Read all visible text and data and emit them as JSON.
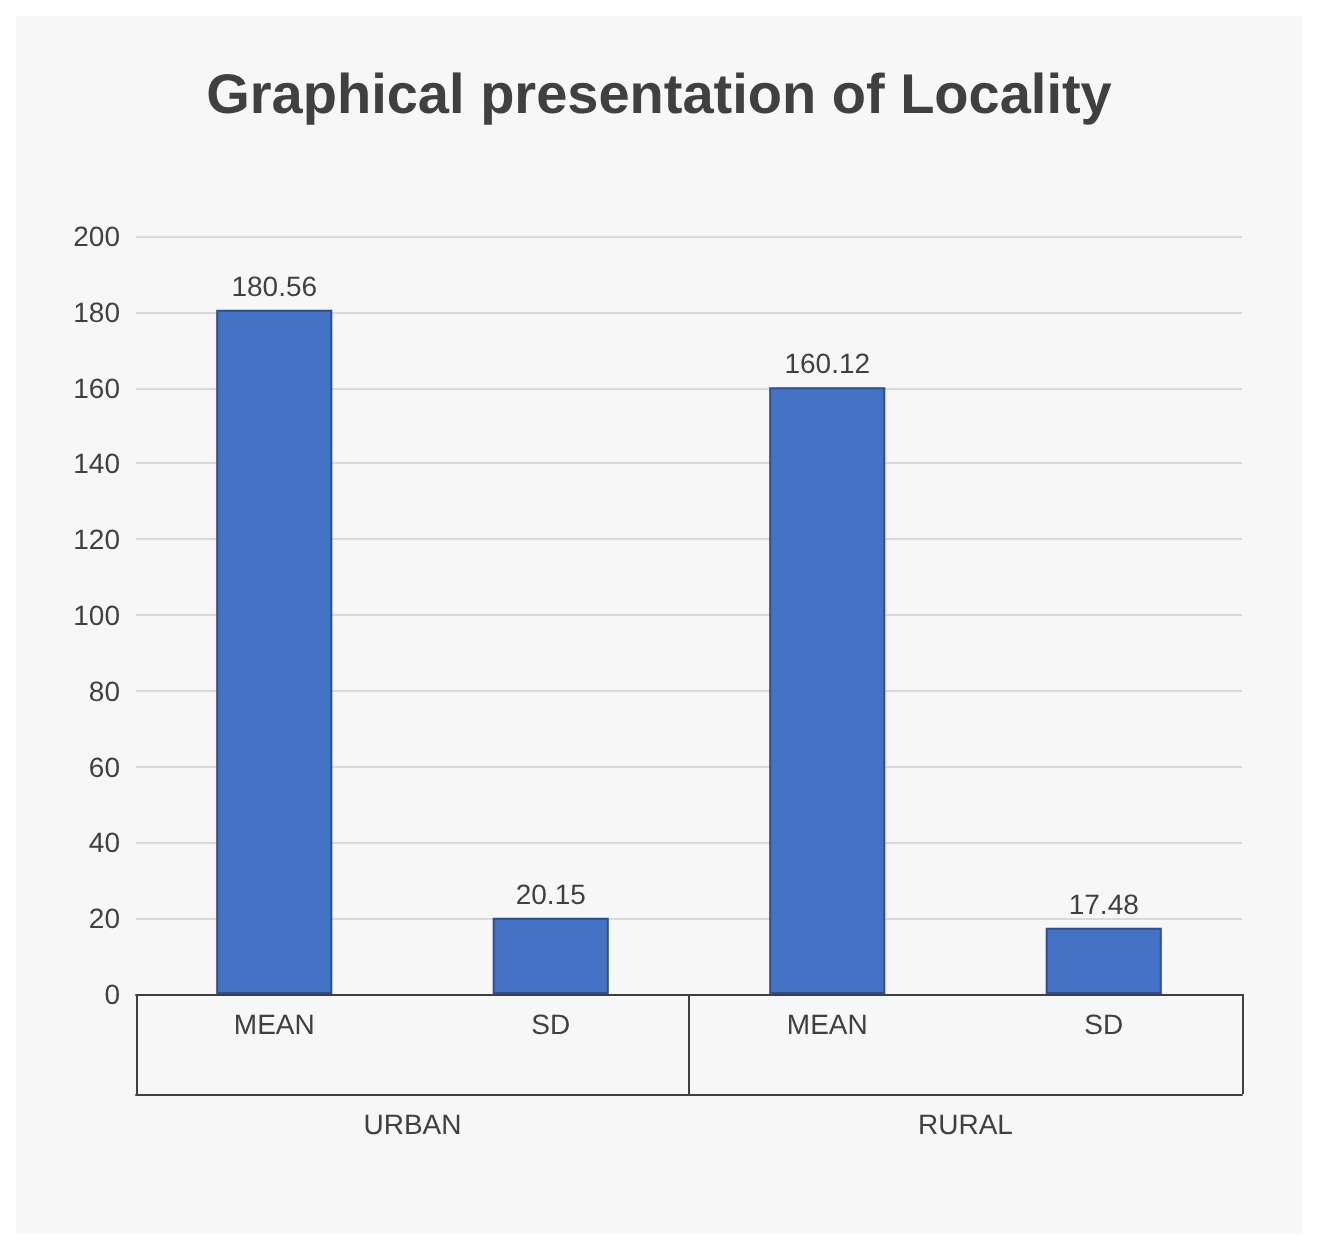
{
  "chart_data": {
    "type": "bar",
    "title": "Graphical presentation of Locality",
    "categories": [
      "MEAN",
      "SD",
      "MEAN",
      "SD"
    ],
    "values": [
      180.56,
      20.15,
      160.12,
      17.48
    ],
    "color": "#4472c4",
    "ylim": [
      0,
      200
    ],
    "yticks": [
      0,
      20,
      40,
      60,
      80,
      100,
      120,
      140,
      160,
      180,
      200
    ],
    "grid": "y",
    "data_labels": true,
    "annotations": [
      "URBAN",
      "RURAL"
    ]
  }
}
